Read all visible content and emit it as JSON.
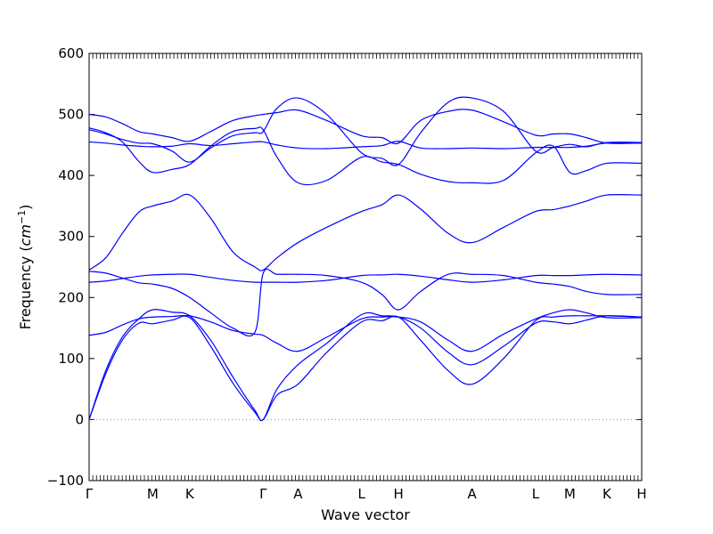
{
  "chart_data": {
    "type": "line",
    "xlabel": "Wave vector",
    "ylabel": "Frequency (cm⁻¹)",
    "ylabel_parts": {
      "prefix": "Frequency (",
      "unit": "cm",
      "exponent": "−1",
      "suffix": ")"
    },
    "ylim": [
      -100,
      600
    ],
    "yticks": [
      -100,
      0,
      100,
      200,
      300,
      400,
      500,
      600
    ],
    "grid": false,
    "zero_line": {
      "y": 0,
      "style": "dotted",
      "color": "#888888"
    },
    "line_color": "#0000ff",
    "high_symmetry_points": [
      {
        "label": "Γ",
        "x": 0.0
      },
      {
        "label": "M",
        "x": 0.115
      },
      {
        "label": "K",
        "x": 0.182
      },
      {
        "label": "Γ",
        "x": 0.315
      },
      {
        "label": "A",
        "x": 0.378
      },
      {
        "label": "L",
        "x": 0.493
      },
      {
        "label": "H",
        "x": 0.56
      },
      {
        "label": "A",
        "x": 0.693
      },
      {
        "label": "L",
        "x": 0.808
      },
      {
        "label": "M",
        "x": 0.87
      },
      {
        "label": "K",
        "x": 0.937
      },
      {
        "label": "H",
        "x": 1.0
      }
    ],
    "series": [
      {
        "x": [
          0.0,
          0.03,
          0.06,
          0.09,
          0.115,
          0.15,
          0.182,
          0.22,
          0.26,
          0.3,
          0.315,
          0.34,
          0.378,
          0.43,
          0.493,
          0.53,
          0.56,
          0.6,
          0.65,
          0.693,
          0.75,
          0.808,
          0.84,
          0.87,
          0.9,
          0.937,
          1.0
        ],
        "values": [
          0,
          80,
          135,
          165,
          180,
          176,
          170,
          130,
          70,
          15,
          0,
          50,
          90,
          125,
          172,
          170,
          168,
          150,
          110,
          90,
          120,
          158,
          160,
          157,
          163,
          170,
          168
        ]
      },
      {
        "x": [
          0.0,
          0.03,
          0.06,
          0.09,
          0.115,
          0.15,
          0.182,
          0.22,
          0.26,
          0.3,
          0.315,
          0.34,
          0.378,
          0.43,
          0.493,
          0.53,
          0.56,
          0.6,
          0.65,
          0.693,
          0.75,
          0.808,
          0.84,
          0.87,
          0.9,
          0.937,
          1.0
        ],
        "values": [
          0,
          75,
          130,
          158,
          157,
          163,
          167,
          120,
          60,
          12,
          0,
          40,
          58,
          110,
          160,
          162,
          168,
          130,
          80,
          58,
          100,
          162,
          168,
          170,
          170,
          170,
          168
        ]
      },
      {
        "x": [
          0.0,
          0.03,
          0.06,
          0.09,
          0.115,
          0.15,
          0.182,
          0.22,
          0.26,
          0.3,
          0.315,
          0.34,
          0.378,
          0.43,
          0.493,
          0.53,
          0.56,
          0.6,
          0.65,
          0.693,
          0.75,
          0.808,
          0.84,
          0.87,
          0.9,
          0.937,
          1.0
        ],
        "values": [
          138,
          143,
          155,
          165,
          168,
          169,
          170,
          160,
          146,
          140,
          138,
          125,
          112,
          135,
          165,
          168,
          168,
          160,
          130,
          112,
          140,
          165,
          175,
          180,
          175,
          167,
          167
        ]
      },
      {
        "x": [
          0.0,
          0.03,
          0.06,
          0.09,
          0.115,
          0.15,
          0.182,
          0.22,
          0.26,
          0.3,
          0.315,
          0.34,
          0.378,
          0.43,
          0.493,
          0.53,
          0.56,
          0.6,
          0.65,
          0.693,
          0.75,
          0.808,
          0.84,
          0.87,
          0.9,
          0.937,
          1.0
        ],
        "values": [
          225,
          227,
          231,
          235,
          237,
          238,
          238,
          233,
          228,
          225,
          225,
          225,
          225,
          228,
          236,
          237,
          238,
          235,
          229,
          225,
          229,
          236,
          236,
          236,
          237,
          238,
          237
        ]
      },
      {
        "x": [
          0.0,
          0.03,
          0.06,
          0.09,
          0.115,
          0.15,
          0.182,
          0.22,
          0.26,
          0.3,
          0.315,
          0.34,
          0.378,
          0.43,
          0.493,
          0.53,
          0.56,
          0.6,
          0.65,
          0.693,
          0.75,
          0.808,
          0.84,
          0.87,
          0.9,
          0.937,
          1.0
        ],
        "values": [
          243,
          240,
          232,
          224,
          222,
          215,
          200,
          175,
          150,
          143,
          240,
          238,
          238,
          236,
          225,
          205,
          180,
          210,
          238,
          238,
          236,
          225,
          222,
          218,
          210,
          205,
          205
        ]
      },
      {
        "x": [
          0.0,
          0.03,
          0.06,
          0.09,
          0.115,
          0.15,
          0.182,
          0.22,
          0.26,
          0.3,
          0.315,
          0.34,
          0.378,
          0.43,
          0.493,
          0.53,
          0.56,
          0.6,
          0.65,
          0.693,
          0.75,
          0.808,
          0.84,
          0.87,
          0.9,
          0.937,
          1.0
        ],
        "values": [
          245,
          265,
          305,
          340,
          350,
          358,
          368,
          330,
          275,
          250,
          245,
          265,
          290,
          315,
          341,
          352,
          368,
          345,
          305,
          290,
          315,
          341,
          344,
          350,
          358,
          368,
          368
        ]
      },
      {
        "x": [
          0.0,
          0.03,
          0.06,
          0.09,
          0.115,
          0.15,
          0.182,
          0.22,
          0.26,
          0.3,
          0.315,
          0.34,
          0.378,
          0.43,
          0.493,
          0.53,
          0.56,
          0.6,
          0.65,
          0.693,
          0.75,
          0.808,
          0.84,
          0.87,
          0.9,
          0.937,
          1.0
        ],
        "values": [
          455,
          453,
          450,
          448,
          447,
          448,
          452,
          449,
          452,
          455,
          455,
          450,
          445,
          444,
          447,
          449,
          456,
          445,
          444,
          445,
          444,
          446,
          446,
          446,
          448,
          453,
          453
        ]
      },
      {
        "x": [
          0.0,
          0.03,
          0.06,
          0.09,
          0.115,
          0.15,
          0.182,
          0.22,
          0.26,
          0.3,
          0.315,
          0.34,
          0.378,
          0.43,
          0.493,
          0.53,
          0.56,
          0.6,
          0.65,
          0.693,
          0.75,
          0.808,
          0.84,
          0.87,
          0.9,
          0.937,
          1.0
        ],
        "values": [
          478,
          470,
          455,
          423,
          405,
          410,
          418,
          448,
          472,
          477,
          475,
          430,
          388,
          392,
          430,
          422,
          418,
          402,
          390,
          388,
          392,
          437,
          448,
          405,
          408,
          420,
          420
        ]
      },
      {
        "x": [
          0.0,
          0.03,
          0.06,
          0.09,
          0.115,
          0.15,
          0.182,
          0.22,
          0.26,
          0.3,
          0.315,
          0.34,
          0.378,
          0.43,
          0.493,
          0.53,
          0.56,
          0.6,
          0.65,
          0.693,
          0.75,
          0.808,
          0.84,
          0.87,
          0.9,
          0.937,
          1.0
        ],
        "values": [
          475,
          468,
          459,
          453,
          452,
          440,
          422,
          445,
          465,
          470,
          472,
          510,
          527,
          500,
          437,
          428,
          418,
          470,
          520,
          527,
          505,
          440,
          446,
          451,
          447,
          454,
          454
        ]
      },
      {
        "x": [
          0.0,
          0.03,
          0.06,
          0.09,
          0.115,
          0.15,
          0.182,
          0.22,
          0.26,
          0.3,
          0.315,
          0.34,
          0.378,
          0.43,
          0.493,
          0.53,
          0.56,
          0.6,
          0.65,
          0.693,
          0.75,
          0.808,
          0.84,
          0.87,
          0.9,
          0.937,
          1.0
        ],
        "values": [
          500,
          496,
          485,
          472,
          468,
          462,
          456,
          472,
          490,
          498,
          500,
          503,
          507,
          490,
          465,
          462,
          453,
          490,
          505,
          507,
          488,
          466,
          468,
          468,
          462,
          453,
          453
        ]
      }
    ]
  }
}
